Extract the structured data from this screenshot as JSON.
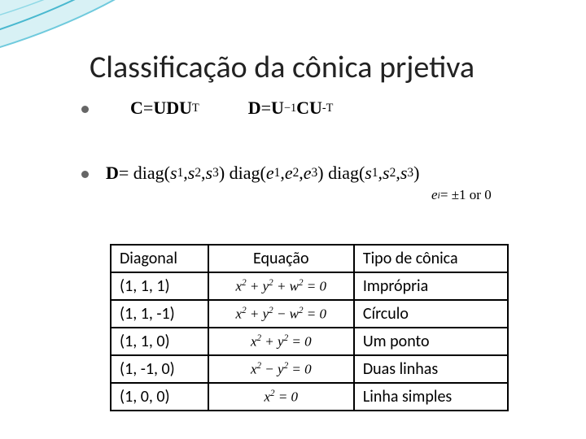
{
  "title": "Classificação da cônica prjetiva",
  "decor": {
    "swoosh_color_outer": "#bfe8ef",
    "swoosh_color_inner": "#5ec6d9",
    "swoosh_stroke": "#2aa0b8"
  },
  "equations": {
    "top_left_html": "<span class='b'>C</span> = <span class='b'>UDU</span><span class='sup'>T</span>",
    "top_right_html": "<span class='b'>D</span> = <span class='b'>U</span><span class='sup'>−1</span><span class='b'>CU</span><span class='sup'>-T</span>",
    "mid_html": "<span class='b'>D</span> = diag(<i>s</i><span class='sub'>1</span>, <i>s</i><span class='sub'>2</span>, <i>s</i><span class='sub'>3</span>) diag(<i>e</i><span class='sub'>1</span>, <i>e</i><span class='sub'>2</span>, <i>e</i><span class='sub'>3</span>) diag(<i>s</i><span class='sub'>1</span>, <i>s</i><span class='sub'>2</span>, <i>s</i><span class='sub'>3</span>)",
    "side_html": "<i>e</i><span class='sub'><i>i</i></span> = ±1 or 0"
  },
  "table": {
    "headers": [
      "Diagonal",
      "Equação",
      "Tipo de cônica"
    ],
    "rows": [
      {
        "diag": "(1, 1, 1)",
        "eq_html": "x<span class='sup'>2</span> + y<span class='sup'>2</span> + w<span class='sup'>2</span> = 0",
        "type": "Imprópria"
      },
      {
        "diag": "(1, 1, -1)",
        "eq_html": "x<span class='sup'>2</span> + y<span class='sup'>2</span> − w<span class='sup'>2</span> = 0",
        "type": "Círculo"
      },
      {
        "diag": "(1, 1, 0)",
        "eq_html": "x<span class='sup'>2</span> + y<span class='sup'>2</span> = 0",
        "type": "Um ponto"
      },
      {
        "diag": "(1, -1, 0)",
        "eq_html": "x<span class='sup'>2</span> − y<span class='sup'>2</span> = 0",
        "type": "Duas linhas"
      },
      {
        "diag": "(1, 0, 0)",
        "eq_html": "x<span class='sup'>2</span> = 0",
        "type": "Linha simples"
      }
    ]
  }
}
